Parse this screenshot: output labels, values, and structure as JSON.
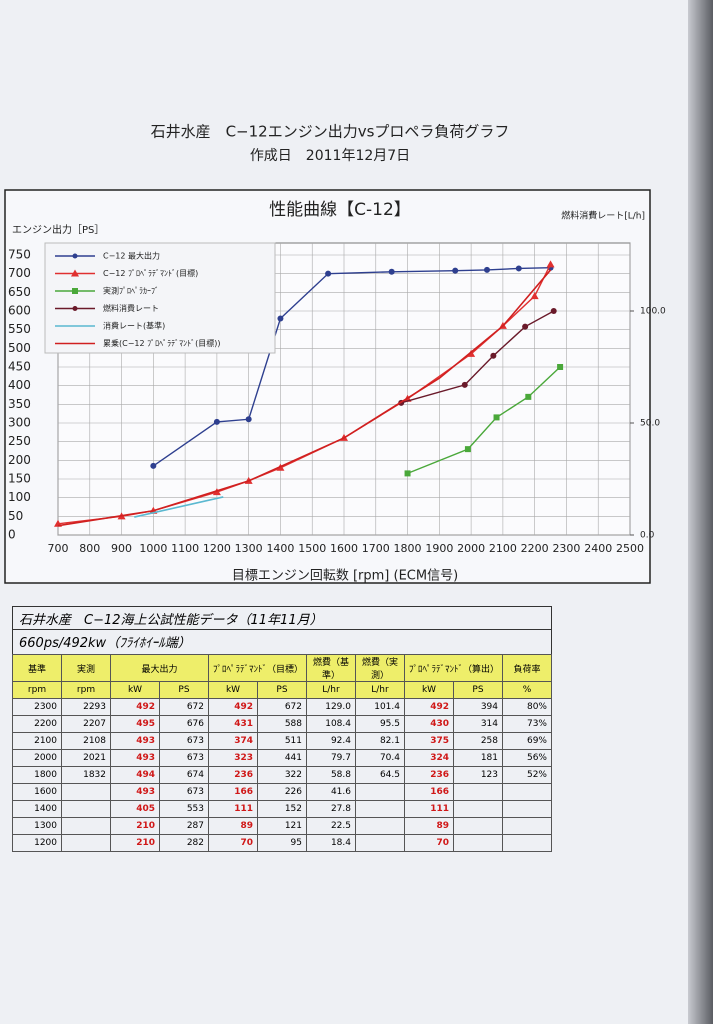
{
  "header": {
    "title": "石井水産　C−12エンジン出力vsプロペラ負荷グラフ",
    "date": "作成日　2011年12月7日"
  },
  "chart_data": {
    "type": "line",
    "title": "性能曲線【C-12】",
    "y_label": "エンジン出力［PS］",
    "y2_label": "燃料消費レート[L/h]",
    "x_label": "目標エンジン回転数 [rpm] (ECM信号)",
    "xlim": [
      700,
      2500
    ],
    "xticks": [
      700,
      800,
      900,
      1000,
      1100,
      1200,
      1300,
      1400,
      1500,
      1600,
      1700,
      1800,
      1900,
      2000,
      2100,
      2200,
      2300,
      2400,
      2500
    ],
    "ylim": [
      0,
      750
    ],
    "yticks": [
      0,
      50,
      100,
      150,
      200,
      250,
      300,
      350,
      400,
      450,
      500,
      550,
      600,
      650,
      700,
      750
    ],
    "y2lim": [
      0,
      125
    ],
    "y2ticks": [
      {
        "value": 0,
        "label": "0.0"
      },
      {
        "value": 50,
        "label": "50.0"
      },
      {
        "value": 100,
        "label": "100.0"
      }
    ],
    "grid": true,
    "series": [
      {
        "name": "C−12 最大出力",
        "color": "#2e3f8f",
        "marker": "circle",
        "x": [
          1000,
          1200,
          1300,
          1400,
          1550,
          1750,
          1950,
          2050,
          2150,
          2250
        ],
        "values": [
          185,
          303,
          310,
          580,
          700,
          705,
          708,
          710,
          714,
          716
        ]
      },
      {
        "name": "C−12 ﾌﾟﾛﾍﾟﾗﾃﾞﾏﾝﾄﾞ(目標)",
        "color": "#e03030",
        "marker": "triangle",
        "x": [
          700,
          900,
          1000,
          1200,
          1300,
          1400,
          1600,
          1800,
          2000,
          2100,
          2200,
          2250
        ],
        "values": [
          30,
          50,
          65,
          115,
          145,
          180,
          260,
          365,
          485,
          560,
          640,
          725
        ]
      },
      {
        "name": "実測ﾌﾟﾛﾍﾟﾗｶｰﾌﾞ",
        "color": "#4aa83a",
        "marker": "square",
        "x": [
          1800,
          1990,
          2080,
          2180,
          2280
        ],
        "values": [
          165,
          230,
          315,
          370,
          450
        ]
      },
      {
        "name": "燃料消費レート",
        "color": "#6a1a2a",
        "marker": "circle",
        "axis": "y2",
        "x": [
          1780,
          1980,
          2070,
          2170,
          2260
        ],
        "values": [
          59,
          67,
          80,
          93,
          100
        ]
      },
      {
        "name": "消費レート(基準)",
        "color": "#5ab8d0",
        "marker": "none",
        "axis": "y2",
        "x": [
          940,
          1220
        ],
        "values": [
          8,
          17
        ]
      },
      {
        "name": "累乗(C−12 ﾌﾟﾛﾍﾟﾗﾃﾞﾏﾝﾄﾞ(目標))",
        "color": "#d02020",
        "marker": "none",
        "x": [
          700,
          1000,
          1300,
          1600,
          1900,
          2100,
          2250
        ],
        "values": [
          25,
          65,
          145,
          260,
          420,
          560,
          710
        ]
      }
    ]
  },
  "table": {
    "title": "石井水産　C−12海上公試性能データ（11年11月）",
    "subtitle": "660ps/492kw（ﾌﾗｲﾎｲｰﾙ端）",
    "groups": [
      "基準",
      "実測",
      "最大出力",
      "ﾌﾟﾛﾍﾟﾗﾃﾞﾏﾝﾄﾞ（目標）",
      "燃費（基準）",
      "燃費（実測）",
      "ﾌﾟﾛﾍﾟﾗﾃﾞﾏﾝﾄﾞ（算出）",
      "負荷率"
    ],
    "units": [
      "rpm",
      "rpm",
      "kW",
      "PS",
      "kW",
      "PS",
      "L/hr",
      "L/hr",
      "kW",
      "PS",
      "%"
    ],
    "rows": [
      [
        "2300",
        "2293",
        "492",
        "672",
        "492",
        "672",
        "129.0",
        "101.4",
        "492",
        "394",
        "80%"
      ],
      [
        "2200",
        "2207",
        "495",
        "676",
        "431",
        "588",
        "108.4",
        "95.5",
        "430",
        "314",
        "73%"
      ],
      [
        "2100",
        "2108",
        "493",
        "673",
        "374",
        "511",
        "92.4",
        "82.1",
        "375",
        "258",
        "69%"
      ],
      [
        "2000",
        "2021",
        "493",
        "673",
        "323",
        "441",
        "79.7",
        "70.4",
        "324",
        "181",
        "56%"
      ],
      [
        "1800",
        "1832",
        "494",
        "674",
        "236",
        "322",
        "58.8",
        "64.5",
        "236",
        "123",
        "52%"
      ],
      [
        "1600",
        null,
        "493",
        "673",
        "166",
        "226",
        "41.6",
        null,
        "166",
        null,
        null
      ],
      [
        "1400",
        null,
        "405",
        "553",
        "111",
        "152",
        "27.8",
        null,
        "111",
        null,
        null
      ],
      [
        "1300",
        null,
        "210",
        "287",
        "89",
        "121",
        "22.5",
        null,
        "89",
        null,
        null
      ],
      [
        "1200",
        null,
        "210",
        "282",
        "70",
        "95",
        "18.4",
        null,
        "70",
        null,
        null
      ]
    ]
  }
}
